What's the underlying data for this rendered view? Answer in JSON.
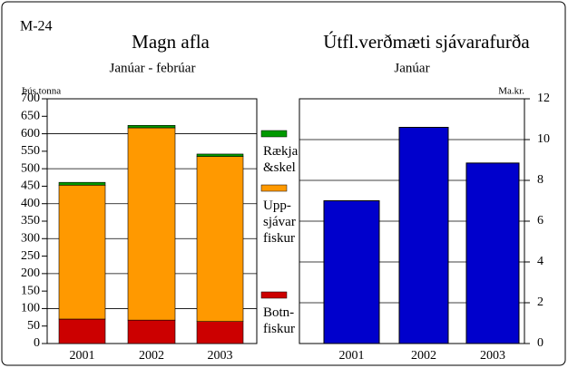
{
  "label": "M-24",
  "chart_data": [
    {
      "type": "stacked_bar",
      "title": "Magn afla",
      "subtitle": "Janúar - febrúar",
      "y_label": "Þús.tonna",
      "categories": [
        "2001",
        "2002",
        "2003"
      ],
      "series": [
        {
          "name": "Botn-fiskur",
          "color": "#cc0000",
          "values": [
            70,
            67,
            63
          ]
        },
        {
          "name": "Upp-sjávar fiskur",
          "color": "#ff9900",
          "values": [
            383,
            550,
            472
          ]
        },
        {
          "name": "Rækja &skel",
          "color": "#009900",
          "values": [
            8,
            7,
            7
          ]
        }
      ],
      "ylim": [
        0,
        700
      ],
      "yticks": [
        0,
        50,
        100,
        150,
        200,
        250,
        300,
        350,
        400,
        450,
        500,
        550,
        600,
        650,
        700
      ],
      "grid": true
    },
    {
      "type": "bar",
      "title": "Útfl.verðmæti sjávarafurða",
      "subtitle": "Janúar",
      "y_label": "Ma.kr.",
      "categories": [
        "2001",
        "2002",
        "2003"
      ],
      "values": [
        7.0,
        10.6,
        8.85
      ],
      "color": "#0000cc",
      "ylim": [
        0,
        12
      ],
      "yticks": [
        0,
        2,
        4,
        6,
        8,
        10,
        12
      ],
      "grid": true,
      "axis_side": "right"
    }
  ]
}
